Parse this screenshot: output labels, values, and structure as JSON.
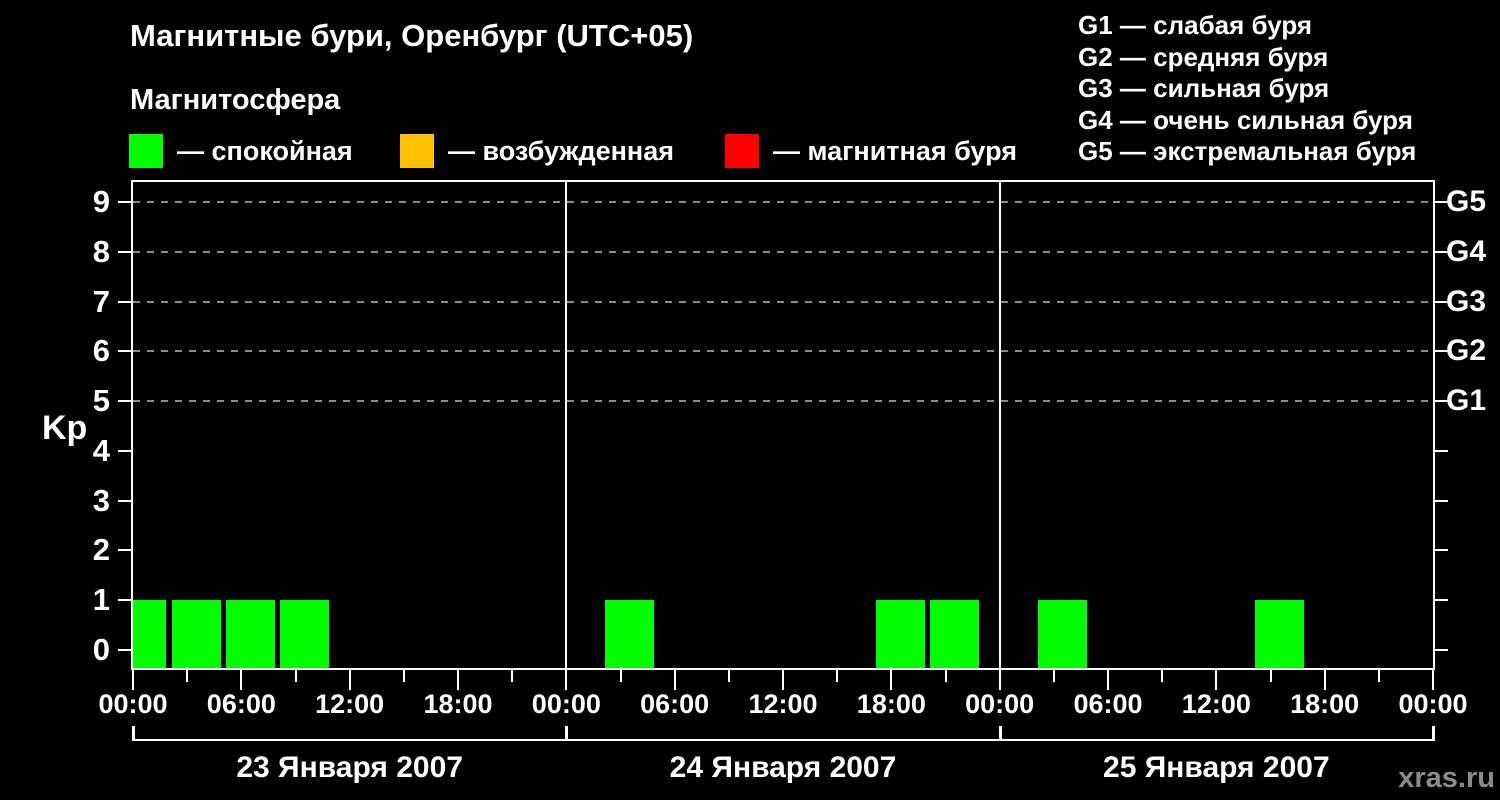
{
  "title": "Магнитные бури, Оренбург (UTC+05)",
  "subtitle": "Магнитосфера",
  "legend": {
    "items": [
      {
        "name": "quiet",
        "color": "#00ff00",
        "label": "— спокойная"
      },
      {
        "name": "unsettled",
        "color": "#ffc000",
        "label": "— возбужденная"
      },
      {
        "name": "storm",
        "color": "#ff0000",
        "label": "— магнитная буря"
      }
    ]
  },
  "storm_scale_legend": {
    "lines": [
      "G1 — слабая буря",
      "G2 — средняя буря",
      "G3 — сильная буря",
      "G4 — очень сильная буря",
      "G5 — экстремальная буря"
    ]
  },
  "axes": {
    "y_label": "Kp",
    "y_ticks": [
      0,
      1,
      2,
      3,
      4,
      5,
      6,
      7,
      8,
      9
    ],
    "grid_levels_kp": [
      5,
      6,
      7,
      8,
      9
    ],
    "right_axis_labels": [
      {
        "label": "G1",
        "kp": 5
      },
      {
        "label": "G2",
        "kp": 6
      },
      {
        "label": "G3",
        "kp": 7
      },
      {
        "label": "G4",
        "kp": 8
      },
      {
        "label": "G5",
        "kp": 9
      }
    ],
    "x_major_labels": [
      "00:00",
      "06:00",
      "12:00",
      "18:00"
    ],
    "x_major_step_hours": 6,
    "x_minor_step_hours": 3
  },
  "days": [
    {
      "date_label": "23 Января 2007",
      "kp": [
        1,
        1,
        1,
        1,
        0,
        0,
        0,
        0
      ]
    },
    {
      "date_label": "24 Января 2007",
      "kp": [
        0,
        1,
        0,
        0,
        0,
        0,
        1,
        1
      ]
    },
    {
      "date_label": "25 Января 2007",
      "kp": [
        0,
        1,
        0,
        0,
        0,
        1,
        0,
        0
      ]
    }
  ],
  "watermark": "xras.ru",
  "colors": {
    "background": "#000000",
    "foreground": "#ffffff",
    "grid": "#8c8c8c",
    "quiet": "#00ff00",
    "unsettled": "#ffc000",
    "storm": "#ff0000",
    "watermark": "#8c8c8c"
  },
  "chart_data": {
    "type": "bar",
    "title": "Магнитные бури, Оренбург (UTC+05)",
    "subtitle": "Магнитосфера",
    "xlabel": "",
    "ylabel": "Kp",
    "ylim": [
      0,
      9
    ],
    "grid": "dashed horizontal lines at Kp 5,6,7,8,9",
    "legend_position": "top-left (state colors) and top-right (G-scale)",
    "slot_start_times": [
      "00:00",
      "03:00",
      "06:00",
      "09:00",
      "12:00",
      "15:00",
      "18:00",
      "21:00"
    ],
    "series": [
      {
        "name": "23 Января 2007",
        "values": [
          1,
          1,
          1,
          1,
          0,
          0,
          0,
          0
        ]
      },
      {
        "name": "24 Января 2007",
        "values": [
          0,
          1,
          0,
          0,
          0,
          0,
          1,
          1
        ]
      },
      {
        "name": "25 Января 2007",
        "values": [
          0,
          1,
          0,
          0,
          0,
          1,
          0,
          0
        ]
      }
    ],
    "bar_color_rule": {
      "kp_0_3": "#00ff00",
      "kp_4": "#ffc000",
      "kp_5_9": "#ff0000"
    },
    "right_axis_mapping": {
      "G1": 5,
      "G2": 6,
      "G3": 7,
      "G4": 8,
      "G5": 9
    },
    "x_tick_labels_every_6h": [
      "00:00",
      "06:00",
      "12:00",
      "18:00"
    ]
  }
}
